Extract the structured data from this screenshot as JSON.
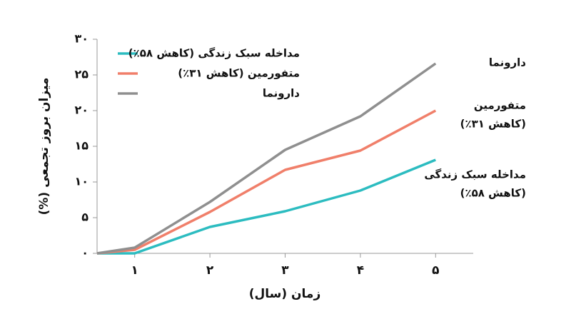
{
  "chart_data": {
    "type": "line",
    "y_label": "میزان بروز تجمعی (%)",
    "x_label": "زمان (سال)",
    "x": [
      0.5,
      1,
      2,
      3,
      4,
      5
    ],
    "xlim": [
      0.5,
      5.5
    ],
    "xticks": [
      {
        "value": 1,
        "label": "۱"
      },
      {
        "value": 2,
        "label": "۲"
      },
      {
        "value": 3,
        "label": "۳"
      },
      {
        "value": 4,
        "label": "۴"
      },
      {
        "value": 5,
        "label": "۵"
      }
    ],
    "ylim": [
      0,
      30
    ],
    "yticks": [
      {
        "value": 0,
        "label": "۰"
      },
      {
        "value": 5,
        "label": "۵"
      },
      {
        "value": 10,
        "label": "۱۰"
      },
      {
        "value": 15,
        "label": "۱۵"
      },
      {
        "value": 20,
        "label": "۲۰"
      },
      {
        "value": 25,
        "label": "۲۵"
      },
      {
        "value": 30,
        "label": "۳۰"
      }
    ],
    "series": [
      {
        "name": "مداخله سبک زندگی (کاهش ۵۸٪)",
        "color": "#2cbcc0",
        "values": [
          0,
          0,
          3.7,
          5.9,
          8.8,
          13.1
        ]
      },
      {
        "name": "متفورمین (کاهش ۳۱٪)",
        "color": "#f07f6a",
        "values": [
          0,
          0.5,
          5.8,
          11.7,
          14.4,
          20
        ]
      },
      {
        "name": "دارونما",
        "color": "#8f8f8f",
        "values": [
          0,
          0.8,
          7.2,
          14.5,
          19.2,
          26.6
        ]
      }
    ],
    "annotations": [
      {
        "lines": [
          "دارونما"
        ]
      },
      {
        "lines": [
          "متفورمین",
          "(کاهش ۳۱٪)"
        ]
      },
      {
        "lines": [
          "مداخله سبک زندگی",
          "(کاهش ۵۸٪)"
        ]
      }
    ]
  }
}
